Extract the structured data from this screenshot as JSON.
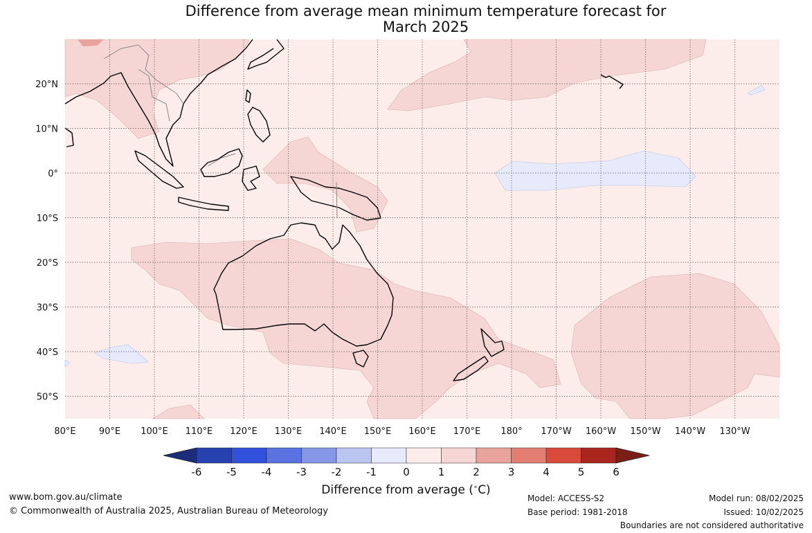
{
  "title_line1": "Difference from average mean minimum temperature forecast for",
  "title_line2": "March 2025",
  "map": {
    "lon_ticks": [
      "80°E",
      "90°E",
      "100°E",
      "110°E",
      "120°E",
      "130°E",
      "140°E",
      "150°E",
      "160°E",
      "170°E",
      "180°",
      "170°W",
      "160°W",
      "150°W",
      "140°W",
      "130°W"
    ],
    "lat_ticks": [
      "20°N",
      "10°N",
      "0°",
      "10°S",
      "20°S",
      "30°S",
      "40°S",
      "50°S"
    ]
  },
  "colorbar": {
    "labels": [
      "-6",
      "-5",
      "-4",
      "-3",
      "-2",
      "-1",
      "0",
      "1",
      "2",
      "3",
      "4",
      "5",
      "6"
    ],
    "colors": [
      "#1c2d7c",
      "#2742b0",
      "#3150db",
      "#5a73e0",
      "#8597e6",
      "#bcc4f0",
      "#e6eafa",
      "#fcecea",
      "#f5d6d4",
      "#e8a49c",
      "#e37e73",
      "#da4a3b",
      "#a9261f",
      "#7a1e18"
    ],
    "title": "Difference from average (",
    "title_unit": "C)"
  },
  "footer": {
    "url": "www.bom.gov.au/climate",
    "copyright": "© Commonwealth of Australia 2025, Australian Bureau of Meteorology",
    "model": "Model: ACCESS-S2",
    "base_period": "Base period: 1981-2018",
    "model_run": "Model run: 08/02/2025",
    "issued": "Issued: 10/02/2025",
    "disclaimer": "Boundaries are not considered authoritative"
  }
}
